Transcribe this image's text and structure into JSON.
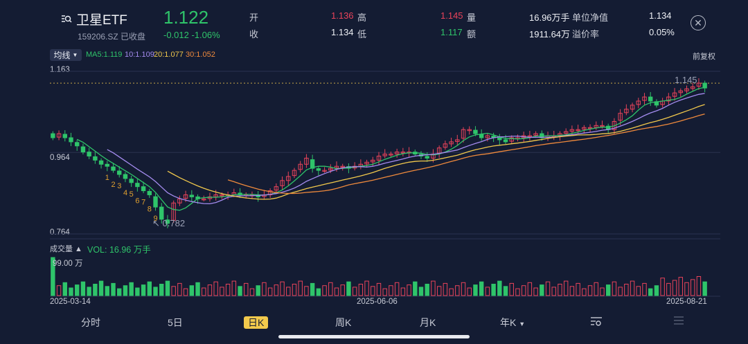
{
  "header": {
    "title": "卫星ETF",
    "code_status": "159206.SZ 已收盘",
    "price": "1.122",
    "change": "-0.012 -1.06%",
    "open_label": "开",
    "open_value": "1.136",
    "high_label": "高",
    "high_value": "1.145",
    "volume_label": "量",
    "volume_value": "16.96万手",
    "nav_label": "单位净值",
    "nav_value": "1.134",
    "close_label": "收",
    "close_value": "1.134",
    "low_label": "低",
    "low_value": "1.117",
    "amount_label": "额",
    "amount_value": "1911.64万",
    "premium_label": "溢价率",
    "premium_value": "0.05%"
  },
  "chart_controls": {
    "ma_button": "均线",
    "ma5": "MA5:1.119",
    "ma10": "10:1.109",
    "ma20": "20:1.077",
    "ma30": "30:1.052",
    "adjust": "前复权"
  },
  "colors": {
    "up": "#e9435a",
    "down": "#2fc46a",
    "ma5": "#2fc46a",
    "ma10": "#a58cf0",
    "ma20": "#f2c94c",
    "ma30": "#f08a3c",
    "bg": "#141c33"
  },
  "price_axis": {
    "top": "1.163",
    "mid": "0.964",
    "bottom": "0.764"
  },
  "annotations": {
    "high": "1.145",
    "low": "0.782",
    "sequence": [
      "1",
      "2",
      "3",
      "4",
      "5",
      "6",
      "7",
      "8",
      "9"
    ]
  },
  "volume": {
    "label": "成交量",
    "vol_text": "VOL: 16.96 万手",
    "max_label": "99.00 万"
  },
  "dates": {
    "start": "2025-03-14",
    "mid": "2025-06-06",
    "end": "2025-08-21"
  },
  "tabs": [
    "分时",
    "5日",
    "日K",
    "周K",
    "月K",
    "年K"
  ],
  "active_tab": "日K",
  "icons": [
    "search-icon",
    "close-icon",
    "settings-icon",
    "menu-icon"
  ],
  "chart_data": {
    "type": "candlestick",
    "ylim": [
      0.764,
      1.163
    ],
    "x_labels": [
      "2025-03-14",
      "2025-06-06",
      "2025-08-21"
    ],
    "ma_last": {
      "MA5": 1.119,
      "MA10": 1.109,
      "MA20": 1.077,
      "MA30": 1.052
    },
    "series_close": [
      1.0,
      1.01,
      1.0,
      0.99,
      0.98,
      0.965,
      0.955,
      0.945,
      0.935,
      0.93,
      0.92,
      0.91,
      0.9,
      0.89,
      0.88,
      0.87,
      0.86,
      0.83,
      0.8,
      0.79,
      0.84,
      0.85,
      0.86,
      0.855,
      0.85,
      0.85,
      0.855,
      0.86,
      0.86,
      0.86,
      0.865,
      0.86,
      0.86,
      0.86,
      0.855,
      0.86,
      0.87,
      0.88,
      0.895,
      0.905,
      0.92,
      0.935,
      0.95,
      0.925,
      0.92,
      0.92,
      0.925,
      0.93,
      0.93,
      0.925,
      0.93,
      0.935,
      0.94,
      0.945,
      0.955,
      0.96,
      0.96,
      0.965,
      0.965,
      0.965,
      0.96,
      0.955,
      0.95,
      0.96,
      0.975,
      0.985,
      0.99,
      0.995,
      1.02,
      1.02,
      1.01,
      1.0,
      1.005,
      1.0,
      0.995,
      0.99,
      1.0,
      1.0,
      1.005,
      1.005,
      1.01,
      1.0,
      1.005,
      1.005,
      1.01,
      1.015,
      1.02,
      1.02,
      1.025,
      1.025,
      1.03,
      1.03,
      1.02,
      1.04,
      1.06,
      1.07,
      1.08,
      1.09,
      1.1,
      1.09,
      1.08,
      1.09,
      1.1,
      1.11,
      1.115,
      1.12,
      1.125,
      1.134,
      1.122
    ],
    "volume_max": 99.0,
    "volume_last": 16.96
  }
}
